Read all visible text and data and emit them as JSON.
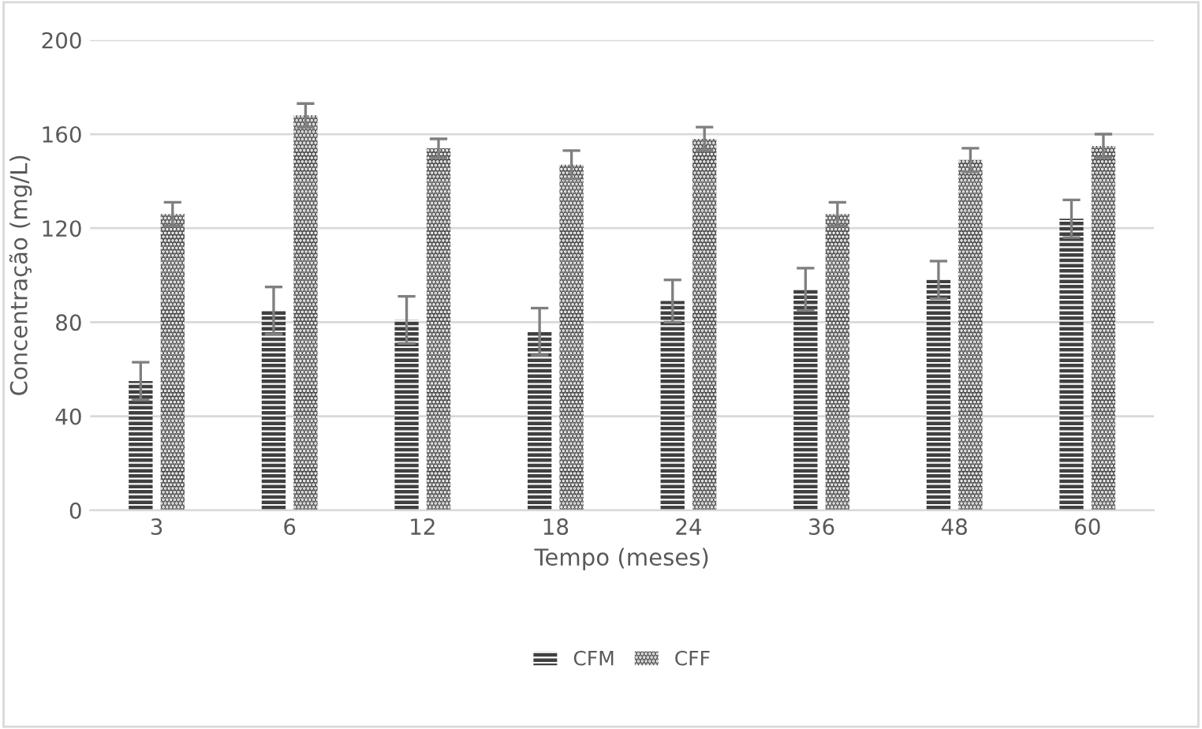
{
  "chart_data": {
    "type": "bar",
    "xlabel": "Tempo (meses)",
    "ylabel": "Concentração (mg/L)",
    "categories": [
      "3",
      "6",
      "12",
      "18",
      "24",
      "36",
      "48",
      "60"
    ],
    "series": [
      {
        "name": "CFM",
        "color": "#404040",
        "values": [
          55,
          85,
          81,
          76,
          89,
          94,
          98,
          124
        ],
        "errors": [
          8,
          10,
          10,
          10,
          9,
          9,
          8,
          8
        ]
      },
      {
        "name": "CFF",
        "color": "#404040",
        "values": [
          126,
          168,
          154,
          147,
          158,
          126,
          149,
          155
        ],
        "errors": [
          5,
          5,
          4,
          6,
          5,
          5,
          5,
          5
        ]
      }
    ],
    "ylim": [
      0,
      200
    ],
    "yticks": [
      0,
      40,
      80,
      120,
      160,
      200
    ],
    "grid": "y",
    "legend": "bottom"
  }
}
